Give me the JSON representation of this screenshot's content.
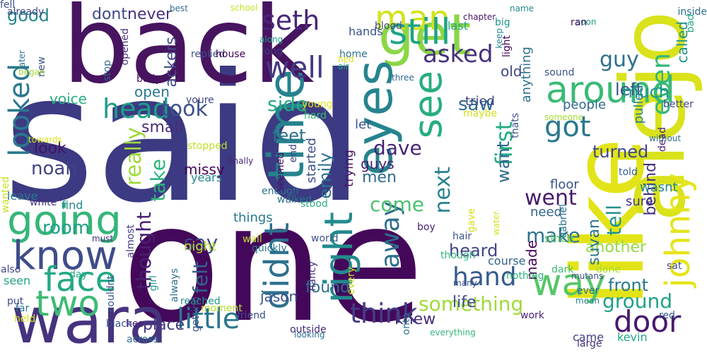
{
  "words": [
    {
      "text": "said",
      "color": "#3b3a82"
    },
    {
      "text": "one",
      "color": "#44085a"
    },
    {
      "text": "back",
      "color": "#47145f"
    },
    {
      "text": "like",
      "color": "#e2e418"
    },
    {
      "text": "alejo",
      "color": "#d9e21a"
    },
    {
      "text": "wara",
      "color": "#46337e"
    },
    {
      "text": "get",
      "color": "#8bd646"
    },
    {
      "text": "eyes",
      "color": "#25848e"
    },
    {
      "text": "time",
      "color": "#26828e"
    },
    {
      "text": "man",
      "color": "#d2e21b"
    },
    {
      "text": "still",
      "color": "#20a386"
    },
    {
      "text": "around",
      "color": "#3aba76"
    },
    {
      "text": "looked",
      "color": "#2a788e"
    },
    {
      "text": "going",
      "color": "#34b679"
    },
    {
      "text": "know",
      "color": "#3e4c8a"
    },
    {
      "text": "face",
      "color": "#22a884"
    },
    {
      "text": "two",
      "color": "#3dbc74"
    },
    {
      "text": "well",
      "color": "#443983"
    },
    {
      "text": "see",
      "color": "#27ad81"
    },
    {
      "text": "right",
      "color": "#238a8d"
    },
    {
      "text": "didnt",
      "color": "#2d708e"
    },
    {
      "text": "way",
      "color": "#56c667"
    },
    {
      "text": "johnny",
      "color": "#e5e419"
    },
    {
      "text": "door",
      "color": "#481a6c"
    },
    {
      "text": "head",
      "color": "#1f9e89"
    },
    {
      "text": "got",
      "color": "#2a788e"
    },
    {
      "text": "even",
      "color": "#35b779"
    },
    {
      "text": "seth",
      "color": "#482677"
    },
    {
      "text": "asked",
      "color": "#472f7d"
    },
    {
      "text": "guy",
      "color": "#2e6f8e"
    },
    {
      "text": "away",
      "color": "#2e6e8e"
    },
    {
      "text": "little",
      "color": "#2a778e"
    },
    {
      "text": "think",
      "color": "#433e85"
    },
    {
      "text": "really",
      "color": "#9dd93b"
    },
    {
      "text": "took",
      "color": "#3b528b"
    },
    {
      "text": "good",
      "color": "#24868e"
    },
    {
      "text": "dont",
      "color": "#3e4989"
    },
    {
      "text": "never",
      "color": "#46327e"
    },
    {
      "text": "saw",
      "color": "#31688e"
    },
    {
      "text": "left",
      "color": "#3b528b"
    },
    {
      "text": "much",
      "color": "#1f988b"
    },
    {
      "text": "side",
      "color": "#25ac82"
    },
    {
      "text": "feet",
      "color": "#2c728e"
    },
    {
      "text": "first",
      "color": "#25ab82"
    },
    {
      "text": "want",
      "color": "#31688e"
    },
    {
      "text": "dave",
      "color": "#482475"
    },
    {
      "text": "emily",
      "color": "#2c728e"
    },
    {
      "text": "noah",
      "color": "#414487"
    },
    {
      "text": "look",
      "color": "#471164"
    },
    {
      "text": "small",
      "color": "#472c7a"
    },
    {
      "text": "turned",
      "color": "#3f4788"
    },
    {
      "text": "next",
      "color": "#26828e"
    },
    {
      "text": "take",
      "color": "#2db27d"
    },
    {
      "text": "voice",
      "color": "#29af7f"
    },
    {
      "text": "open",
      "color": "#2a788e"
    },
    {
      "text": "thought",
      "color": "#481f70"
    },
    {
      "text": "room",
      "color": "#1fa088"
    },
    {
      "text": "say",
      "color": "#3e4989"
    },
    {
      "text": "felt",
      "color": "#33638d"
    },
    {
      "text": "went",
      "color": "#481a6c"
    },
    {
      "text": "tell",
      "color": "#20928c"
    },
    {
      "text": "make",
      "color": "#2b748e"
    },
    {
      "text": "made",
      "color": "#46075a"
    },
    {
      "text": "hand",
      "color": "#375b8d"
    },
    {
      "text": "behind",
      "color": "#472f7d"
    },
    {
      "text": "come",
      "color": "#4ac16d"
    },
    {
      "text": "heard",
      "color": "#414487"
    },
    {
      "text": "something",
      "color": "#a0da39"
    },
    {
      "text": "place",
      "color": "#443a83"
    },
    {
      "text": "knew",
      "color": "#472d7b"
    },
    {
      "text": "found",
      "color": "#2e6f8e"
    },
    {
      "text": "front",
      "color": "#29798e"
    },
    {
      "text": "life",
      "color": "#3e4c8a"
    },
    {
      "text": "ground",
      "color": "#1fa187"
    },
    {
      "text": "another",
      "color": "#95d840"
    },
    {
      "text": "suvan",
      "color": "#2a768e"
    },
    {
      "text": "people",
      "color": "#31678e"
    },
    {
      "text": "sure",
      "color": "#443b84"
    },
    {
      "text": "wasnt",
      "color": "#24868e"
    },
    {
      "text": "need",
      "color": "#32658e"
    },
    {
      "text": "ackers",
      "color": "#3f4788"
    },
    {
      "text": "missy",
      "color": "#440154"
    },
    {
      "text": "men",
      "color": "#2f6c8e"
    },
    {
      "text": "guys",
      "color": "#482173"
    },
    {
      "text": "started",
      "color": "#3d4e8a"
    },
    {
      "text": "let",
      "color": "#3a548c"
    },
    {
      "text": "trying",
      "color": "#481467"
    },
    {
      "text": "tried",
      "color": "#3f4889"
    },
    {
      "text": "last",
      "color": "#20a486"
    },
    {
      "text": "old",
      "color": "#414487"
    },
    {
      "text": "anything",
      "color": "#2c728e"
    },
    {
      "text": "pulled",
      "color": "#26828e"
    },
    {
      "text": "called",
      "color": "#20938c"
    },
    {
      "text": "gabriel",
      "color": "#2c718e"
    },
    {
      "text": "told",
      "color": "#355f8d"
    },
    {
      "text": "floor",
      "color": "#3a548c"
    },
    {
      "text": "things",
      "color": "#2a788e"
    },
    {
      "text": "night",
      "color": "#bade28"
    },
    {
      "text": "hair",
      "color": "#3a538b"
    },
    {
      "text": "jason",
      "color": "#3b528b"
    },
    {
      "text": "nancy",
      "color": "#46307e"
    },
    {
      "text": "course",
      "color": "#33638d"
    },
    {
      "text": "came",
      "color": "#433e85"
    },
    {
      "text": "kevin",
      "color": "#22a884"
    },
    {
      "text": "since",
      "color": "#5ec962"
    },
    {
      "text": "dark",
      "color": "#3dbc74"
    },
    {
      "text": "enough",
      "color": "#2d708e"
    },
    {
      "text": "stood",
      "color": "#29af7f"
    },
    {
      "text": "walked",
      "color": "#2d708e"
    },
    {
      "text": "seemed",
      "color": "#471063"
    },
    {
      "text": "end",
      "color": "#3f4889"
    },
    {
      "text": "stopped",
      "color": "#c2df23"
    },
    {
      "text": "finally",
      "color": "#482878"
    },
    {
      "text": "years",
      "color": "#24878e"
    },
    {
      "text": "young",
      "color": "#e5e419"
    },
    {
      "text": "hard",
      "color": "#3aba76"
    },
    {
      "text": "maybe",
      "color": "#d0e11c"
    },
    {
      "text": "thats",
      "color": "#3b528b"
    },
    {
      "text": "someone",
      "color": "#a5db36"
    },
    {
      "text": "without",
      "color": "#2e6f8e"
    },
    {
      "text": "dead",
      "color": "#482677"
    },
    {
      "text": "better",
      "color": "#3f4788"
    },
    {
      "text": "inside",
      "color": "#2e6e8e"
    },
    {
      "text": "bad",
      "color": "#26ad81"
    },
    {
      "text": "soon",
      "color": "#1fa088"
    },
    {
      "text": "ran",
      "color": "#48186a"
    },
    {
      "text": "sound",
      "color": "#3b528b"
    },
    {
      "text": "three",
      "color": "#31688e"
    },
    {
      "text": "light",
      "color": "#440154"
    },
    {
      "text": "keep",
      "color": "#23888e"
    },
    {
      "text": "chapter",
      "color": "#471365"
    },
    {
      "text": "big",
      "color": "#20938c"
    },
    {
      "text": "name",
      "color": "#23898e"
    },
    {
      "text": "blood",
      "color": "#3d4d8a"
    },
    {
      "text": "along",
      "color": "#1f9a8a"
    },
    {
      "text": "school",
      "color": "#cae11f"
    },
    {
      "text": "best",
      "color": "#2f6b8e"
    },
    {
      "text": "hands",
      "color": "#3b528b"
    },
    {
      "text": "opened",
      "color": "#46327e"
    },
    {
      "text": "long",
      "color": "#443a83"
    },
    {
      "text": "replied",
      "color": "#3c4f8a"
    },
    {
      "text": "house",
      "color": "#440154"
    },
    {
      "text": "home",
      "color": "#2d708e"
    },
    {
      "text": "hed",
      "color": "#e2e418"
    },
    {
      "text": "air",
      "color": "#20a386"
    },
    {
      "text": "stop",
      "color": "#31688e"
    },
    {
      "text": "new",
      "color": "#3a548c"
    },
    {
      "text": "later",
      "color": "#2e6e8e"
    },
    {
      "text": "began",
      "color": "#a2da37"
    },
    {
      "text": "already",
      "color": "#3f4889"
    },
    {
      "text": "body",
      "color": "#470e61"
    },
    {
      "text": "youre",
      "color": "#3f4788"
    },
    {
      "text": "help",
      "color": "#433e85"
    },
    {
      "text": "towards",
      "color": "#dde318"
    },
    {
      "text": "wanted",
      "color": "#c8e020"
    },
    {
      "text": "leave",
      "color": "#2a788e"
    },
    {
      "text": "white",
      "color": "#46337e"
    },
    {
      "text": "find",
      "color": "#23898e"
    },
    {
      "text": "must",
      "color": "#472d7b"
    },
    {
      "text": "almost",
      "color": "#443983"
    },
    {
      "text": "wall",
      "color": "#c0df25"
    },
    {
      "text": "quickly",
      "color": "#2a788e"
    },
    {
      "text": "world",
      "color": "#3b528b"
    },
    {
      "text": "boy",
      "color": "#482475"
    },
    {
      "text": "water",
      "color": "#d5e21a"
    },
    {
      "text": "though",
      "color": "#32b67a"
    },
    {
      "text": "done",
      "color": "#a8db34"
    },
    {
      "text": "sat",
      "color": "#3e4989"
    },
    {
      "text": "gave",
      "color": "#d2e21b"
    },
    {
      "text": "ever",
      "color": "#2d708e"
    },
    {
      "text": "mutans",
      "color": "#3c4f8a"
    },
    {
      "text": "mean",
      "color": "#25838e"
    },
    {
      "text": "red",
      "color": "#3a548c"
    },
    {
      "text": "large",
      "color": "#46307e"
    },
    {
      "text": "work",
      "color": "#482374"
    },
    {
      "text": "nothing",
      "color": "#2fb47c"
    },
    {
      "text": "many",
      "color": "#3b528b"
    },
    {
      "text": "onto",
      "color": "#2c728e"
    },
    {
      "text": "every",
      "color": "#c5e021"
    },
    {
      "text": "everything",
      "color": "#33b679"
    },
    {
      "text": "looking",
      "color": "#2c728e"
    },
    {
      "text": "outside",
      "color": "#472c7a"
    },
    {
      "text": "friend",
      "color": "#3c4f8a"
    },
    {
      "text": "across",
      "color": "#2e6e8e"
    },
    {
      "text": "hes",
      "color": "#481b6d"
    },
    {
      "text": "black",
      "color": "#3b528b"
    },
    {
      "text": "held",
      "color": "#d8e219"
    },
    {
      "text": "far",
      "color": "#2a768e"
    },
    {
      "text": "put",
      "color": "#3e4a89"
    },
    {
      "text": "also",
      "color": "#414487"
    },
    {
      "text": "seen",
      "color": "#22a785"
    },
    {
      "text": "day",
      "color": "#25ab82"
    },
    {
      "text": "couldnt",
      "color": "#3b528b"
    },
    {
      "text": "girl",
      "color": "#1f9e89"
    },
    {
      "text": "always",
      "color": "#2e6f8e"
    },
    {
      "text": "getting",
      "color": "#3b528b"
    },
    {
      "text": "moment",
      "color": "#b2dd2d"
    },
    {
      "text": "reached",
      "color": "#1f958b"
    },
    {
      "text": "fell",
      "color": "#39558c"
    }
  ]
}
